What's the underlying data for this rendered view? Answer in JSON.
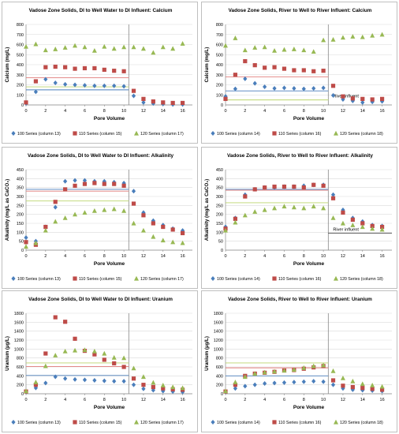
{
  "colors": {
    "s100": "#4a7ebb",
    "s110": "#be4b48",
    "s120": "#98b954",
    "ref100": "#4a7ebb",
    "ref110": "#e07b79",
    "ref120": "#bcd56e",
    "divider": "#888888",
    "grid": "#d9d9d9"
  },
  "chart_data": [
    {
      "type": "scatter",
      "title": "Vadose Zone Solids, DI to Well Water to DI Influent: Calcium",
      "xlabel": "Pore Volume",
      "ylabel": "Calcium (mg/L)",
      "xlim": [
        0,
        17
      ],
      "ylim": [
        0,
        800
      ],
      "xticks": [
        "0",
        "2",
        "4",
        "6",
        "8",
        "10",
        "12",
        "14",
        "16"
      ],
      "yticks": [
        "0",
        "100",
        "200",
        "300",
        "400",
        "500",
        "600",
        "700",
        "800"
      ],
      "divider_x": 10.5,
      "reference_lines": {
        "s100": 150,
        "s110": 270,
        "s120": 180
      },
      "annotation": "",
      "series": [
        {
          "name": "100 Series (column 13)",
          "key": "s100",
          "marker": "diamond",
          "x": [
            0,
            1,
            2,
            3,
            4,
            5,
            6,
            7,
            8,
            9,
            10,
            11,
            12,
            13,
            14,
            15,
            16
          ],
          "y": [
            15,
            130,
            255,
            220,
            205,
            200,
            195,
            190,
            190,
            190,
            185,
            90,
            25,
            15,
            10,
            5,
            5
          ]
        },
        {
          "name": "110 Series (column 15)",
          "key": "s110",
          "marker": "square",
          "x": [
            0,
            1,
            2,
            3,
            4,
            5,
            6,
            7,
            8,
            9,
            10,
            11,
            12,
            13,
            14,
            15,
            16
          ],
          "y": [
            25,
            235,
            375,
            380,
            375,
            360,
            365,
            365,
            350,
            340,
            335,
            140,
            60,
            35,
            25,
            20,
            20
          ]
        },
        {
          "name": "120 Series (column 17)",
          "key": "s120",
          "marker": "triangle",
          "x": [
            0,
            1,
            2,
            3,
            4,
            5,
            6,
            7,
            8,
            9,
            10,
            11,
            12,
            13,
            14,
            15,
            16
          ],
          "y": [
            580,
            605,
            545,
            555,
            570,
            590,
            575,
            540,
            580,
            560,
            575,
            575,
            560,
            520,
            575,
            560,
            610
          ]
        }
      ]
    },
    {
      "type": "scatter",
      "title": "Vadose Zone Solids, River to Well to River Influent: Calcium",
      "xlabel": "Pore Volume",
      "ylabel": "Calcium (mg/L)",
      "xlim": [
        0,
        17
      ],
      "ylim": [
        0,
        800
      ],
      "xticks": [
        "0",
        "2",
        "4",
        "6",
        "8",
        "10",
        "12",
        "14",
        "16"
      ],
      "yticks": [
        "0",
        "100",
        "200",
        "300",
        "400",
        "500",
        "600",
        "700",
        "800"
      ],
      "divider_x": 10.5,
      "reference_lines": {
        "s100": 140,
        "s110": 280,
        "s120": 50
      },
      "annotation": "River influent",
      "series": [
        {
          "name": "100 Series (column 14)",
          "key": "s100",
          "marker": "diamond",
          "x": [
            0,
            1,
            2,
            3,
            4,
            5,
            6,
            7,
            8,
            9,
            10,
            11,
            12,
            13,
            14,
            15,
            16
          ],
          "y": [
            85,
            160,
            260,
            215,
            180,
            165,
            170,
            165,
            160,
            165,
            170,
            95,
            55,
            40,
            25,
            30,
            35
          ]
        },
        {
          "name": "110 Series (column 16)",
          "key": "s110",
          "marker": "square",
          "x": [
            0,
            1,
            2,
            3,
            4,
            5,
            6,
            7,
            8,
            9,
            10,
            11,
            12,
            13,
            14,
            15,
            16
          ],
          "y": [
            60,
            300,
            435,
            395,
            370,
            375,
            360,
            345,
            345,
            335,
            340,
            190,
            85,
            65,
            60,
            55,
            60
          ]
        },
        {
          "name": "120 Series (column 18)",
          "key": "s120",
          "marker": "triangle",
          "x": [
            0,
            1,
            2,
            3,
            4,
            5,
            6,
            7,
            8,
            9,
            10,
            11,
            12,
            13,
            14,
            15,
            16
          ],
          "y": [
            590,
            665,
            545,
            570,
            575,
            540,
            550,
            555,
            545,
            530,
            645,
            650,
            670,
            680,
            675,
            690,
            700
          ]
        }
      ]
    },
    {
      "type": "scatter",
      "title": "Vadose Zone Solids, DI to Well Water to DI Influent: Alkalinity",
      "xlabel": "Pore Volume",
      "ylabel": "Alkalinity (mg/L as CaCO₃)",
      "xlim": [
        0,
        17
      ],
      "ylim": [
        0,
        450
      ],
      "xticks": [
        "0",
        "2",
        "4",
        "6",
        "8",
        "10",
        "12",
        "14",
        "16"
      ],
      "yticks": [
        "0",
        "50",
        "100",
        "150",
        "200",
        "250",
        "300",
        "350",
        "400",
        "450"
      ],
      "divider_x": 10.5,
      "reference_lines": {
        "s100": 340,
        "s110": 330,
        "s120": 275
      },
      "annotation": "",
      "series": [
        {
          "name": "100 Series (column 13)",
          "key": "s100",
          "marker": "diamond",
          "x": [
            0,
            1,
            2,
            3,
            4,
            5,
            6,
            7,
            8,
            9,
            10,
            11,
            12,
            13,
            14,
            15,
            16
          ],
          "y": [
            70,
            50,
            130,
            240,
            385,
            390,
            390,
            385,
            385,
            380,
            375,
            330,
            210,
            165,
            140,
            120,
            110
          ]
        },
        {
          "name": "110 Series (column 15)",
          "key": "s110",
          "marker": "square",
          "x": [
            0,
            1,
            2,
            3,
            4,
            5,
            6,
            7,
            8,
            9,
            10,
            11,
            12,
            13,
            14,
            15,
            16
          ],
          "y": [
            45,
            30,
            130,
            270,
            340,
            360,
            370,
            375,
            370,
            370,
            360,
            260,
            195,
            150,
            130,
            115,
            95
          ]
        },
        {
          "name": "120 Series (column 17)",
          "key": "s120",
          "marker": "triangle",
          "x": [
            0,
            1,
            2,
            3,
            4,
            5,
            6,
            7,
            8,
            9,
            10,
            11,
            12,
            13,
            14,
            15,
            16
          ],
          "y": [
            20,
            40,
            110,
            160,
            180,
            200,
            210,
            220,
            225,
            230,
            220,
            150,
            110,
            75,
            55,
            45,
            40
          ]
        }
      ]
    },
    {
      "type": "scatter",
      "title": "Vadose Zone Solids, River to Well to River Influent: Alkalinity",
      "xlabel": "Pore Volume",
      "ylabel": "Alkalinity (mg/L as CaCO₃)",
      "xlim": [
        0,
        17
      ],
      "ylim": [
        0,
        450
      ],
      "xticks": [
        "0",
        "2",
        "4",
        "6",
        "8",
        "10",
        "12",
        "14",
        "16"
      ],
      "yticks": [
        "0",
        "50",
        "100",
        "150",
        "200",
        "250",
        "300",
        "350",
        "400",
        "450"
      ],
      "divider_x": 10.5,
      "reference_lines": {
        "s100": 340,
        "s110": 335,
        "s120": 265
      },
      "river_line": 95,
      "annotation": "River influent",
      "series": [
        {
          "name": "100 Series (column 14)",
          "key": "s100",
          "marker": "diamond",
          "x": [
            0,
            1,
            2,
            3,
            4,
            5,
            6,
            7,
            8,
            9,
            10,
            11,
            12,
            13,
            14,
            15,
            16
          ],
          "y": [
            130,
            180,
            310,
            340,
            350,
            350,
            355,
            355,
            360,
            365,
            365,
            310,
            225,
            180,
            160,
            140,
            135
          ]
        },
        {
          "name": "110 Series (column 16)",
          "key": "s110",
          "marker": "square",
          "x": [
            0,
            1,
            2,
            3,
            4,
            5,
            6,
            7,
            8,
            9,
            10,
            11,
            12,
            13,
            14,
            15,
            16
          ],
          "y": [
            120,
            175,
            300,
            340,
            350,
            355,
            355,
            355,
            350,
            365,
            360,
            290,
            210,
            170,
            150,
            135,
            130
          ]
        },
        {
          "name": "120 Series (column 18)",
          "key": "s120",
          "marker": "triangle",
          "x": [
            0,
            1,
            2,
            3,
            4,
            5,
            6,
            7,
            8,
            9,
            10,
            11,
            12,
            13,
            14,
            15,
            16
          ],
          "y": [
            110,
            155,
            195,
            215,
            225,
            235,
            245,
            240,
            235,
            245,
            235,
            180,
            150,
            140,
            130,
            120,
            115
          ]
        }
      ]
    },
    {
      "type": "scatter",
      "title": "Vadose Zone Solids, DI to Well Water to DI Influent: Uranium",
      "xlabel": "Pore Volume",
      "ylabel": "Uranium (µg/L)",
      "xlim": [
        0,
        17
      ],
      "ylim": [
        0,
        1800
      ],
      "xticks": [
        "0",
        "2",
        "4",
        "6",
        "8",
        "10",
        "12",
        "14",
        "16"
      ],
      "yticks": [
        "0",
        "200",
        "400",
        "600",
        "800",
        "1000",
        "1200",
        "1400",
        "1600",
        "1800"
      ],
      "divider_x": 10.5,
      "reference_lines": {
        "s100": 410,
        "s110": 610,
        "s120": 690
      },
      "annotation": "",
      "series": [
        {
          "name": "100 Series (column 13)",
          "key": "s100",
          "marker": "diamond",
          "x": [
            0,
            1,
            2,
            3,
            4,
            5,
            6,
            7,
            8,
            9,
            10,
            11,
            12,
            13,
            14,
            15,
            16
          ],
          "y": [
            40,
            130,
            240,
            380,
            340,
            320,
            310,
            300,
            290,
            280,
            280,
            200,
            110,
            80,
            60,
            50,
            40
          ]
        },
        {
          "name": "110 Series (column 15)",
          "key": "s110",
          "marker": "square",
          "x": [
            0,
            1,
            2,
            3,
            4,
            5,
            6,
            7,
            8,
            9,
            10,
            11,
            12,
            13,
            14,
            15,
            16
          ],
          "y": [
            50,
            200,
            900,
            1710,
            1610,
            1230,
            960,
            880,
            760,
            680,
            600,
            340,
            200,
            150,
            120,
            100,
            90
          ]
        },
        {
          "name": "120 Series (column 17)",
          "key": "s120",
          "marker": "triangle",
          "x": [
            0,
            1,
            2,
            3,
            4,
            5,
            6,
            7,
            8,
            9,
            10,
            11,
            12,
            13,
            14,
            15,
            16
          ],
          "y": [
            60,
            260,
            620,
            860,
            950,
            970,
            980,
            950,
            900,
            810,
            800,
            570,
            380,
            250,
            190,
            150,
            130
          ]
        }
      ]
    },
    {
      "type": "scatter",
      "title": "Vadose Zone Solids, River to Well to River Influent: Uranium",
      "xlabel": "Pore Volume",
      "ylabel": "Uranium (µg/L)",
      "xlim": [
        0,
        17
      ],
      "ylim": [
        0,
        1800
      ],
      "xticks": [
        "0",
        "2",
        "4",
        "6",
        "8",
        "10",
        "12",
        "14",
        "16"
      ],
      "yticks": [
        "0",
        "200",
        "400",
        "600",
        "800",
        "1000",
        "1200",
        "1400",
        "1600",
        "1800"
      ],
      "divider_x": 10.5,
      "reference_lines": {
        "s100": 400,
        "s110": 580,
        "s120": 690
      },
      "annotation": "",
      "series": [
        {
          "name": "100 Series (column 14)",
          "key": "s100",
          "marker": "diamond",
          "x": [
            0,
            1,
            2,
            3,
            4,
            5,
            6,
            7,
            8,
            9,
            10,
            11,
            12,
            13,
            14,
            15,
            16
          ],
          "y": [
            40,
            120,
            170,
            200,
            230,
            240,
            250,
            260,
            270,
            280,
            270,
            200,
            120,
            90,
            80,
            70,
            60
          ]
        },
        {
          "name": "110 Series (column 16)",
          "key": "s110",
          "marker": "square",
          "x": [
            0,
            1,
            2,
            3,
            4,
            5,
            6,
            7,
            8,
            9,
            10,
            11,
            12,
            13,
            14,
            15,
            16
          ],
          "y": [
            50,
            200,
            400,
            450,
            470,
            490,
            520,
            530,
            560,
            590,
            620,
            300,
            180,
            150,
            130,
            110,
            90
          ]
        },
        {
          "name": "120 Series (column 18)",
          "key": "s120",
          "marker": "triangle",
          "x": [
            0,
            1,
            2,
            3,
            4,
            5,
            6,
            7,
            8,
            9,
            10,
            11,
            12,
            13,
            14,
            15,
            16
          ],
          "y": [
            60,
            260,
            380,
            450,
            480,
            500,
            520,
            540,
            580,
            620,
            640,
            510,
            350,
            280,
            220,
            190,
            160
          ]
        }
      ]
    }
  ]
}
